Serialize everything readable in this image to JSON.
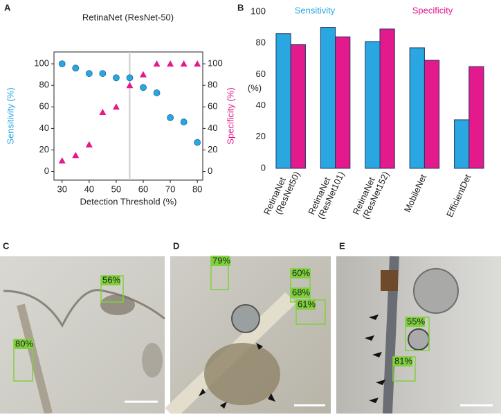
{
  "chart_data": [
    {
      "type": "scatter",
      "panel_label": "A",
      "title": "RetinaNet (ResNet-50)",
      "x_label": "Detection Threshold (%)",
      "y_label": "Sensitivity (%)",
      "y2_label": "Specificity (%)",
      "x": [
        30,
        35,
        40,
        45,
        50,
        55,
        60,
        65,
        70,
        75,
        80
      ],
      "series": [
        {
          "name": "Sensitivity",
          "color": "#2aa7e1",
          "values": [
            100,
            96,
            91,
            91,
            87,
            87,
            78,
            73,
            50,
            46,
            27
          ]
        },
        {
          "name": "Specificity",
          "color": "#e3198c",
          "axis": "y2",
          "values": [
            10,
            15,
            25,
            55,
            60,
            80,
            90,
            100,
            100,
            100,
            100
          ]
        }
      ],
      "xlim": [
        27,
        82
      ],
      "xticks": [
        30,
        40,
        50,
        60,
        70,
        80
      ],
      "ylim": [
        -8,
        111
      ],
      "yticks": [
        0,
        20,
        40,
        60,
        80,
        100
      ],
      "y2lim": [
        -8,
        111
      ],
      "y2ticks": [
        0,
        20,
        40,
        60,
        80,
        100
      ],
      "vline": 55
    },
    {
      "type": "bar",
      "panel_label": "B",
      "y_label": "(%)",
      "categories": [
        "RetinaNet (ResNet50)",
        "RetinaNet (ResNet101)",
        "RetinaNet (ResNet152)",
        "MobileNet",
        "EfficientDet"
      ],
      "series": [
        {
          "name": "Sensitivity",
          "color": "#2aa7e1",
          "values": [
            86,
            90,
            81,
            77,
            31
          ]
        },
        {
          "name": "Specificity",
          "color": "#e3198c",
          "values": [
            79,
            84,
            89,
            69,
            65
          ]
        }
      ],
      "ylim": [
        0,
        100
      ],
      "yticks": [
        0,
        20,
        40,
        60,
        80,
        100
      ]
    }
  ],
  "panels": [
    {
      "label": "C",
      "detections": [
        "56%",
        "80%"
      ]
    },
    {
      "label": "D",
      "detections": [
        "79%",
        "60%",
        "68%",
        "61%"
      ]
    },
    {
      "label": "E",
      "detections": [
        "55%",
        "81%"
      ]
    }
  ]
}
